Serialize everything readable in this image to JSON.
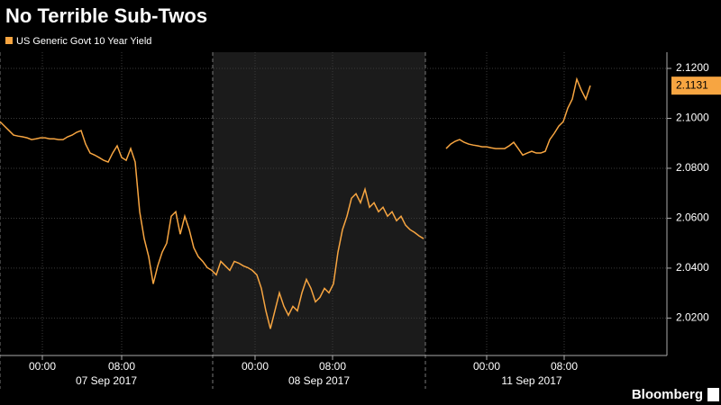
{
  "chart_data": {
    "type": "line",
    "title": "No Terrible Sub-Twos",
    "source": "Bloomberg",
    "series": [
      {
        "name": "US Generic Govt 10 Year Yield",
        "color": "#f7a541",
        "values": [
          2.0987,
          2.0969,
          2.0951,
          2.0933,
          2.0929,
          2.0926,
          2.0922,
          2.0915,
          2.0918,
          2.0922,
          2.0922,
          2.0918,
          2.0918,
          2.0915,
          2.0915,
          2.0926,
          2.0933,
          2.0944,
          2.0951,
          2.0897,
          2.0861,
          2.0853,
          2.0843,
          2.0832,
          2.0825,
          2.0861,
          2.089,
          2.0843,
          2.0832,
          2.0879,
          2.0825,
          2.0626,
          2.0518,
          2.0446,
          2.0337,
          2.0409,
          2.0464,
          2.05,
          2.0608,
          2.0626,
          2.0536,
          2.0608,
          2.0554,
          2.0482,
          2.0446,
          2.0427,
          2.0402,
          2.0391,
          2.0373,
          2.0427,
          2.0409,
          2.0391,
          2.0427,
          2.042,
          2.0409,
          2.0402,
          2.0391,
          2.0373,
          2.0319,
          2.0229,
          2.0157,
          2.0229,
          2.0301,
          2.0247,
          2.0211,
          2.0247,
          2.0229,
          2.0301,
          2.0355,
          2.0319,
          2.0265,
          2.0283,
          2.0319,
          2.0301,
          2.0337,
          2.0464,
          2.0554,
          2.0608,
          2.068,
          2.0698,
          2.0662,
          2.0716,
          2.0644,
          2.0662,
          2.0626,
          2.0644,
          2.0608,
          2.0626,
          2.059,
          2.0608,
          2.0572,
          2.0554,
          2.0543,
          2.0529,
          2.0518,
          null,
          null,
          null,
          null,
          2.0879,
          2.0897,
          2.0908,
          2.0915,
          2.0904,
          2.0897,
          2.0893,
          2.089,
          2.0886,
          2.0886,
          2.0882,
          2.0879,
          2.0879,
          2.0879,
          2.089,
          2.0904,
          2.0879,
          2.0853,
          2.0861,
          2.0868,
          2.0861,
          2.0861,
          2.0868,
          2.0915,
          2.094,
          2.0969,
          2.0987,
          2.1041,
          2.1077,
          2.1157,
          2.1113,
          2.1077,
          2.1131
        ]
      }
    ],
    "xlim": [
      0,
      148
    ],
    "xticks": [
      {
        "value": 9.4,
        "label": "00:00"
      },
      {
        "value": 27,
        "label": "08:00"
      },
      {
        "value": 56.6,
        "label": "00:00"
      },
      {
        "value": 73.8,
        "label": "08:00"
      },
      {
        "value": 108,
        "label": "00:00"
      },
      {
        "value": 125.2,
        "label": "08:00"
      }
    ],
    "date_labels": [
      "07 Sep 2017",
      "08 Sep 2017",
      "11 Sep 2017"
    ],
    "ylim": [
      2.005,
      2.1265
    ],
    "yticks": [
      {
        "value": 2.02,
        "label": "2.0200"
      },
      {
        "value": 2.04,
        "label": "2.0400"
      },
      {
        "value": 2.06,
        "label": "2.0600"
      },
      {
        "value": 2.08,
        "label": "2.0800"
      },
      {
        "value": 2.1,
        "label": "2.1000"
      },
      {
        "value": 2.12,
        "label": "2.1200"
      }
    ],
    "grid": true
  }
}
